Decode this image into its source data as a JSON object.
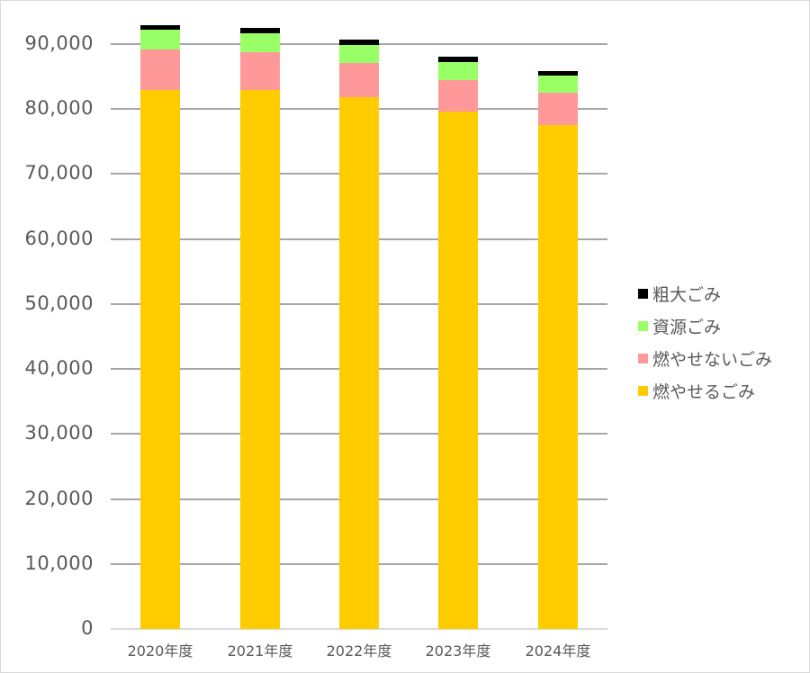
{
  "chart_data": {
    "type": "bar",
    "stacked": true,
    "title": "",
    "xlabel": "",
    "ylabel": "",
    "ylim": [
      0,
      90000
    ],
    "y_ticks": [
      "0",
      "10,000",
      "20,000",
      "30,000",
      "40,000",
      "50,000",
      "60,000",
      "70,000",
      "80,000",
      "90,000"
    ],
    "grid": true,
    "legend_position": "right",
    "categories": [
      "2020年度",
      "2021年度",
      "2022年度",
      "2023年度",
      "2024年度"
    ],
    "series": [
      {
        "name": "燃やせるごみ",
        "color": "#ffcc00",
        "values": [
          83000,
          82900,
          81800,
          79600,
          77600
        ]
      },
      {
        "name": "燃やせないごみ",
        "color": "#ff9999",
        "values": [
          6100,
          5900,
          5300,
          4900,
          4900
        ]
      },
      {
        "name": "資源ごみ",
        "color": "#99ff66",
        "values": [
          3100,
          2900,
          2800,
          2700,
          2700
        ]
      },
      {
        "name": "粗大ごみ",
        "color": "#000000",
        "values": [
          700,
          800,
          800,
          800,
          700
        ]
      }
    ]
  },
  "legend": {
    "items": [
      {
        "label": "粗大ごみ",
        "color": "#000000"
      },
      {
        "label": "資源ごみ",
        "color": "#99ff66"
      },
      {
        "label": "燃やせないごみ",
        "color": "#ff9999"
      },
      {
        "label": "燃やせるごみ",
        "color": "#ffcc00"
      }
    ]
  }
}
